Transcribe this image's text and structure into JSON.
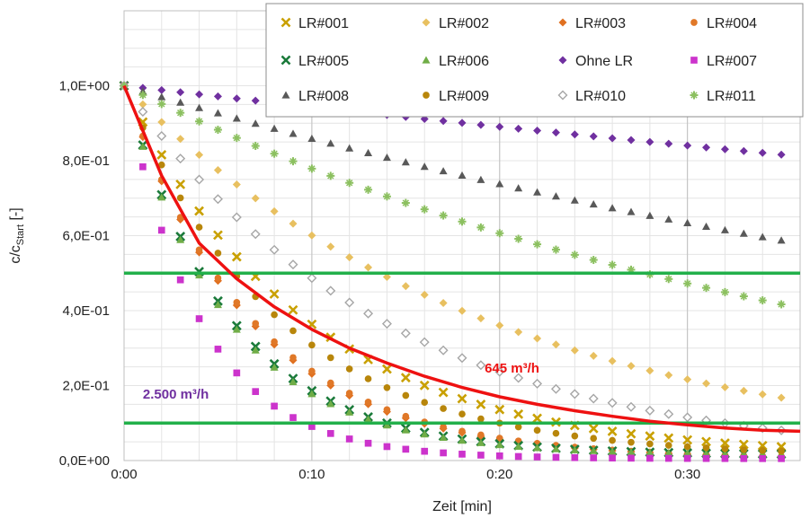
{
  "chart_data": {
    "type": "scatter",
    "xlabel": "Zeit [min]",
    "ylabel_main": "c/c",
    "ylabel_sub": "Start",
    "ylabel_suffix": " [-]",
    "xlim": [
      0,
      36
    ],
    "ylim": [
      0,
      1.2
    ],
    "x_ticks": [
      {
        "value": 0,
        "label": "0:00"
      },
      {
        "value": 10,
        "label": "0:10"
      },
      {
        "value": 20,
        "label": "0:20"
      },
      {
        "value": 30,
        "label": "0:30"
      }
    ],
    "y_ticks": [
      {
        "value": 0,
        "label": "0,0E+00"
      },
      {
        "value": 0.2,
        "label": "2,0E-01"
      },
      {
        "value": 0.4,
        "label": "4,0E-01"
      },
      {
        "value": 0.6,
        "label": "6,0E-01"
      },
      {
        "value": 0.8,
        "label": "8,0E-01"
      },
      {
        "value": 1.0,
        "label": "1,0E+00"
      }
    ],
    "grid": true,
    "legend_position": "top-right",
    "series": [
      {
        "name": "LR#001",
        "marker": "x",
        "color": "#c9a000",
        "k": 0.103,
        "floor": 0.01
      },
      {
        "name": "LR#002",
        "marker": "diamond",
        "color": "#e8c060",
        "k": 0.051,
        "floor": 0
      },
      {
        "name": "LR#003",
        "marker": "diamond",
        "color": "#e07020",
        "k": 0.148,
        "floor": 0.005
      },
      {
        "name": "LR#004",
        "marker": "circle",
        "color": "#e07828",
        "k": 0.145,
        "floor": 0.005
      },
      {
        "name": "LR#005",
        "marker": "x",
        "color": "#1a7a3a",
        "k": 0.175,
        "floor": 0.015
      },
      {
        "name": "LR#006",
        "marker": "triangle",
        "color": "#70ad47",
        "k": 0.18,
        "floor": 0.015
      },
      {
        "name": "Ohne LR",
        "marker": "diamond",
        "color": "#7030a0",
        "k": 0.0058,
        "floor": 0
      },
      {
        "name": "LR#007",
        "marker": "square",
        "color": "#cc33cc",
        "k": 0.245,
        "floor": 0.005
      },
      {
        "name": "LR#008",
        "marker": "triangle",
        "color": "#595959",
        "k": 0.0152,
        "floor": 0
      },
      {
        "name": "LR#009",
        "marker": "circle",
        "color": "#b8860b",
        "k": 0.12,
        "floor": 0.01
      },
      {
        "name": "LR#010",
        "marker": "diamond-open",
        "color": "#a6a6a6",
        "k": 0.072,
        "floor": 0
      },
      {
        "name": "LR#011",
        "marker": "star",
        "color": "#8cc060",
        "k": 0.025,
        "floor": 0
      }
    ],
    "fit_curve": {
      "color": "#ee1111",
      "x": [
        0,
        2,
        4,
        6,
        8,
        10,
        12,
        14,
        16,
        18,
        20,
        22,
        24,
        26,
        28,
        30,
        32,
        34,
        36
      ],
      "y": [
        1.0,
        0.76,
        0.58,
        0.485,
        0.41,
        0.35,
        0.3,
        0.26,
        0.225,
        0.195,
        0.17,
        0.15,
        0.133,
        0.118,
        0.105,
        0.095,
        0.087,
        0.081,
        0.078
      ]
    },
    "reference_lines": [
      {
        "y": 0.5,
        "color": "#22b04a"
      },
      {
        "y": 0.1,
        "color": "#22b04a"
      }
    ],
    "annotations": [
      {
        "text": "645 m³/h",
        "x": 19.2,
        "y": 0.235,
        "style": "red"
      },
      {
        "text": "2.500 m³/h",
        "x": 1.0,
        "y": 0.165,
        "style": "purple"
      }
    ]
  }
}
